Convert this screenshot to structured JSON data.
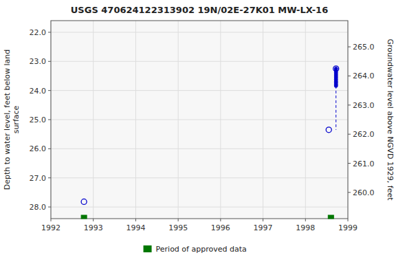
{
  "chart_data": {
    "type": "scatter",
    "title": "USGS 470624122313902 19N/02E-27K01 MW-LX-16",
    "y_label": "Depth to water level, feet below land\nsurface",
    "y2_label": "Groundwater level above NGVD 1929, feet",
    "xlim": [
      1992,
      1999
    ],
    "xticks": [
      1992,
      1993,
      1994,
      1995,
      1996,
      1997,
      1998,
      1999
    ],
    "ylim": [
      28.4,
      21.6
    ],
    "yticks": [
      {
        "value": 22.0,
        "label": "22.0"
      },
      {
        "value": 23.0,
        "label": "23.0"
      },
      {
        "value": 24.0,
        "label": "24.0"
      },
      {
        "value": 25.0,
        "label": "25.0"
      },
      {
        "value": 26.0,
        "label": "26.0"
      },
      {
        "value": 27.0,
        "label": "27.0"
      },
      {
        "value": 28.0,
        "label": "28.0"
      }
    ],
    "y2lim": [
      259.1,
      265.9
    ],
    "y2ticks": [
      {
        "value": 260.0,
        "label": "260.0"
      },
      {
        "value": 261.0,
        "label": "261.0"
      },
      {
        "value": 262.0,
        "label": "262.0"
      },
      {
        "value": 263.0,
        "label": "263.0"
      },
      {
        "value": 264.0,
        "label": "264.0"
      },
      {
        "value": 265.0,
        "label": "265.0"
      }
    ],
    "grid": true,
    "legend": "bottom",
    "series": [
      {
        "type": "scatter",
        "marker": "filled-circle",
        "color": "#0000cc",
        "x": [
          1998.72,
          1998.72,
          1998.72,
          1998.72,
          1998.72,
          1998.72,
          1998.72,
          1998.72,
          1998.72,
          1998.72,
          1998.72
        ],
        "values": [
          23.25,
          23.32,
          23.38,
          23.44,
          23.5,
          23.56,
          23.62,
          23.68,
          23.73,
          23.79,
          23.84
        ]
      },
      {
        "type": "scatter",
        "marker": "open-circle",
        "color": "#0000cc",
        "x": [
          1998.72,
          1998.55,
          1992.78
        ],
        "values": [
          23.25,
          25.35,
          27.82
        ]
      },
      {
        "type": "line",
        "line_style": "dashed",
        "color": "#0000cc",
        "x": [
          1998.72,
          1998.72
        ],
        "values": [
          23.84,
          25.35
        ]
      },
      {
        "name": "Period of approved data",
        "type": "period",
        "color": "#007700",
        "x": [
          1992.78,
          1998.6
        ]
      }
    ]
  }
}
